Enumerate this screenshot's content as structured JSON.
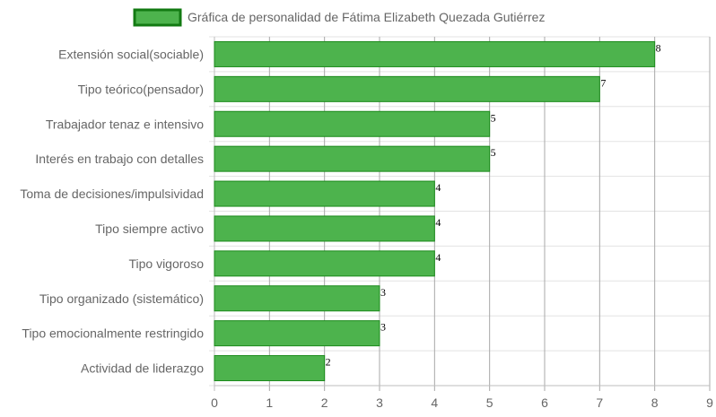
{
  "chart_data": {
    "type": "bar",
    "orientation": "horizontal",
    "categories": [
      "Extensión social(sociable)",
      "Tipo teórico(pensador)",
      "Trabajador tenaz e intensivo",
      "Interés en trabajo con detalles",
      "Toma de decisiones/impulsividad",
      "Tipo siempre activo",
      "Tipo vigoroso",
      "Tipo organizado (sistemático)",
      "Tipo emocionalmente restringido",
      "Actividad de liderazgo"
    ],
    "series": [
      {
        "name": "Gráfica de personalidad de Fátima Elizabeth Quezada Gutiérrez",
        "values": [
          8,
          7,
          5,
          5,
          4,
          4,
          4,
          3,
          3,
          2
        ],
        "color": "#4db34d",
        "border_color": "#1a8a1a"
      }
    ],
    "x_ticks": [
      "0",
      "1",
      "2",
      "3",
      "4",
      "5",
      "6",
      "7",
      "8",
      "9"
    ],
    "xlim": [
      0,
      9
    ],
    "grid": true,
    "legend_position": "top",
    "data_labels": true
  }
}
